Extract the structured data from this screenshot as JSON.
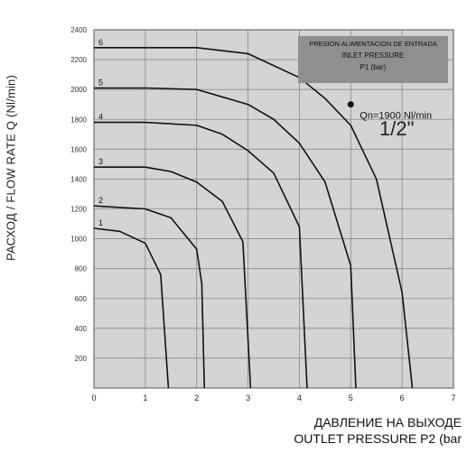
{
  "chart_data": {
    "type": "line",
    "title": "",
    "ylabel": "РАСХОД / FLOW RATE Q (Nl/min)",
    "xlabel_ru": "ДАВЛЕНИЕ НА ВЫХОДЕ",
    "xlabel_en": "OUTLET PRESSURE P2 (bar",
    "x_ticks": [
      "0",
      "1",
      "2",
      "3",
      "4",
      "5",
      "6",
      "7"
    ],
    "y_ticks": [
      "2400",
      "2200",
      "2000",
      "1800",
      "1600",
      "1400",
      "1200",
      "1000",
      "800",
      "600",
      "400",
      "200"
    ],
    "xlim": [
      0,
      7
    ],
    "ylim": [
      0,
      2400
    ],
    "grid": true,
    "legend": {
      "title": "PRESION ALIMENTACION DE ENTRADA",
      "subtitle": "INLET PRESSURE",
      "unit": "P1 (bar)"
    },
    "annotations": {
      "size": "1/2\"",
      "marker_label": "Qn=1900 Nl/min",
      "marker_point": {
        "x": 5.0,
        "y": 1900
      }
    },
    "series": [
      {
        "name": "6",
        "values": [
          [
            0,
            2280
          ],
          [
            1,
            2280
          ],
          [
            2,
            2280
          ],
          [
            3,
            2240
          ],
          [
            4,
            2080
          ],
          [
            4.5,
            1940
          ],
          [
            5,
            1760
          ],
          [
            5.5,
            1400
          ],
          [
            6,
            640
          ],
          [
            6.2,
            0
          ]
        ]
      },
      {
        "name": "5",
        "values": [
          [
            0,
            2010
          ],
          [
            1,
            2010
          ],
          [
            2,
            2000
          ],
          [
            3,
            1900
          ],
          [
            3.5,
            1800
          ],
          [
            4,
            1640
          ],
          [
            4.5,
            1380
          ],
          [
            5,
            820
          ],
          [
            5.1,
            0
          ]
        ]
      },
      {
        "name": "4",
        "values": [
          [
            0,
            1780
          ],
          [
            1,
            1780
          ],
          [
            2,
            1760
          ],
          [
            2.5,
            1700
          ],
          [
            3,
            1590
          ],
          [
            3.5,
            1440
          ],
          [
            4,
            1080
          ],
          [
            4.15,
            0
          ]
        ]
      },
      {
        "name": "3",
        "values": [
          [
            0,
            1480
          ],
          [
            1,
            1480
          ],
          [
            1.5,
            1450
          ],
          [
            2,
            1380
          ],
          [
            2.5,
            1250
          ],
          [
            2.9,
            980
          ],
          [
            3.05,
            0
          ]
        ]
      },
      {
        "name": "2",
        "values": [
          [
            0,
            1220
          ],
          [
            1,
            1200
          ],
          [
            1.5,
            1140
          ],
          [
            2,
            930
          ],
          [
            2.1,
            700
          ],
          [
            2.15,
            0
          ]
        ]
      },
      {
        "name": "1",
        "values": [
          [
            0,
            1070
          ],
          [
            0.5,
            1050
          ],
          [
            1,
            970
          ],
          [
            1.3,
            760
          ],
          [
            1.45,
            0
          ]
        ]
      }
    ]
  }
}
